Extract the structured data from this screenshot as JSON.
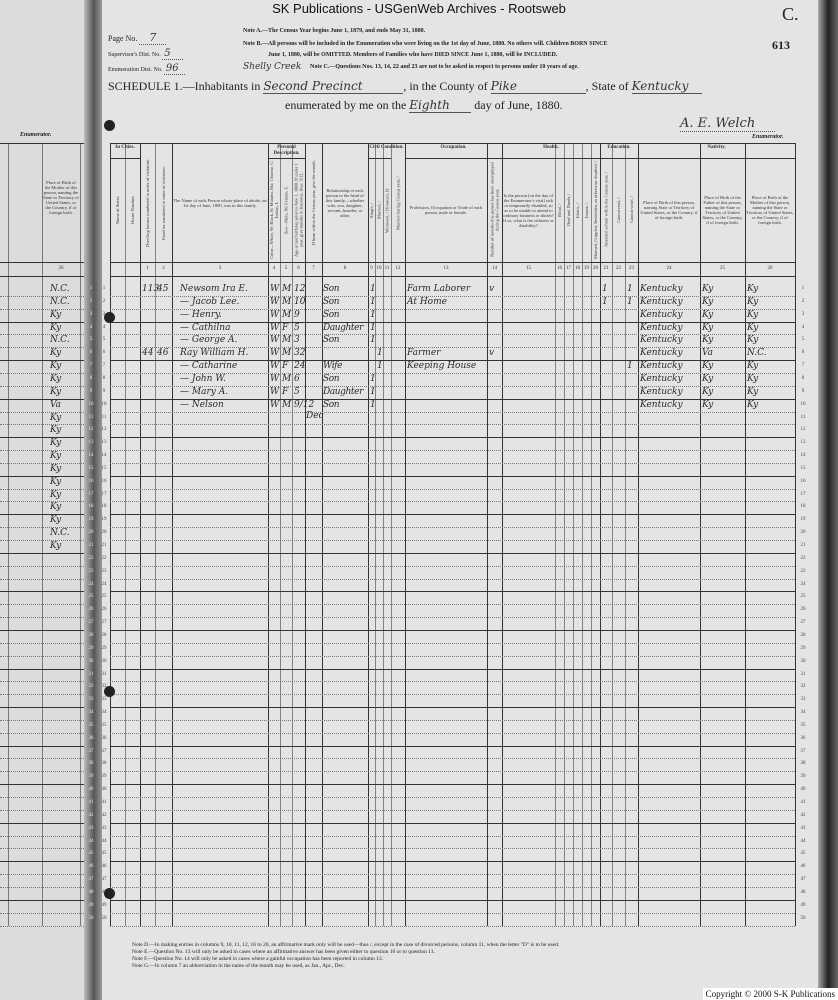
{
  "banner": "SK Publications - USGenWeb Archives - Rootsweb",
  "corner_letter": "C.",
  "stamp_number": "613",
  "header": {
    "page_label": "Page No.",
    "page_value": "7",
    "supervisor_label": "Supervisor's Dist. No.",
    "supervisor_value": "5",
    "enumeration_label": "Enumeration Dist. No.",
    "enumeration_value": "96",
    "note_a": "Note A.—The Census Year begins June 1, 1879, and ends May 31, 1880.",
    "note_b1": "Note B.—All persons will be included in the Enumeration who were living on the 1st day of June, 1880. No others will. Children BORN SINCE",
    "note_b2": "June 1, 1880, will be OMITTED. Members of Families who have DIED SINCE June 1, 1880, will be INCLUDED.",
    "note_c": "Note C.—Questions Nos. 13, 14, 22 and 23 are not to be asked in respect to persons under 10 years of age.",
    "schedule_label": "SCHEDULE 1.—Inhabitants in",
    "place_above": "Shelly Creek",
    "place_value": "Second Precinct",
    "county_label": ", in the County of",
    "county_value": "Pike",
    "state_label": ", State of",
    "state_value": "Kentucky",
    "enumerated_label": "enumerated by me on the",
    "day_value": "Eighth",
    "date_suffix": "day of June, 1880.",
    "signature": "A. E. Welch",
    "enumerator_label": "Enumerator."
  },
  "groups": {
    "in_cities": "In Cities.",
    "personal": "Personal Description.",
    "civil": "Civil Condition.",
    "occupation": "Occupation.",
    "health": "Health.",
    "education": "Education.",
    "nativity": "Nativity."
  },
  "columns": [
    {
      "num": "",
      "text": "Name of Street."
    },
    {
      "num": "",
      "text": "House Number."
    },
    {
      "num": "1",
      "text": "Dwelling houses numbered in order of visitation."
    },
    {
      "num": "2",
      "text": "Families numbered in order of visitation."
    },
    {
      "num": "3",
      "text": "The Name of each Person whose place of abode, on 1st day of June, 1880, was in this family."
    },
    {
      "num": "4",
      "text": "Color—White, W; Black, B; Mulatto, Mu; Chinese, C; Indian, I."
    },
    {
      "num": "5",
      "text": "Sex—Male, M; Female, F."
    },
    {
      "num": "6",
      "text": "Age at last birthday prior to June 1, 1880. If under 1 year, give months in fractions, thus: 3/12."
    },
    {
      "num": "7",
      "text": "If born within the Census year, give the month."
    },
    {
      "num": "8",
      "text": "Relationship of each person to the head of this family—whether wife, son, daughter, servant, boarder, or other."
    },
    {
      "num": "9",
      "text": "Single, /"
    },
    {
      "num": "10",
      "text": "Married, /"
    },
    {
      "num": "11",
      "text": "Widowed, / Divorced, D."
    },
    {
      "num": "12",
      "text": "Married during Census year, /"
    },
    {
      "num": "13",
      "text": "Profession, Occupation or Trade of each person, male or female."
    },
    {
      "num": "14",
      "text": "Number of months this person has been unemployed during the Census year."
    },
    {
      "num": "15",
      "text": "Is the person [on the day of the Enumerator's visit] sick or temporarily disabled, so as to be unable to attend to ordinary business or duties? If so, what is the sickness or disability?"
    },
    {
      "num": "16",
      "text": "Blind, /"
    },
    {
      "num": "17",
      "text": "Deaf and Dumb, /"
    },
    {
      "num": "18",
      "text": "Idiotic, /"
    },
    {
      "num": "19",
      "text": "Insane, /"
    },
    {
      "num": "20",
      "text": "Maimed, Crippled, Bedridden, or otherwise disabled, /"
    },
    {
      "num": "21",
      "text": "Attended school within the Census year, /"
    },
    {
      "num": "22",
      "text": "Cannot read, /"
    },
    {
      "num": "23",
      "text": "Cannot write, /"
    },
    {
      "num": "24",
      "text": "Place of Birth of this person, naming State or Territory of United States, or the Country, if of foreign birth."
    },
    {
      "num": "25",
      "text": "Place of Birth of the Father of this person, naming the State or Territory of United States, or the Country, if of foreign birth."
    },
    {
      "num": "26",
      "text": "Place of Birth of the Mother of this person, naming the State or Territory of United States, or the Country, if of foreign birth."
    }
  ],
  "rows": [
    {
      "dwelling": "113",
      "family": "45",
      "name": "Newsom Ira E.",
      "color": "W",
      "sex": "M",
      "age": "12",
      "relationship": "Son",
      "single": "1",
      "occupation": "Farm Laborer",
      "unemployed": "v",
      "school": "1",
      "cannot_write": "1",
      "birth": "Kentucky",
      "father": "Ky",
      "mother": "Ky"
    },
    {
      "name": "— Jacob Lee.",
      "color": "W",
      "sex": "M",
      "age": "10",
      "relationship": "Son",
      "single": "1",
      "occupation": "At Home",
      "school": "1",
      "cannot_write": "1",
      "birth": "Kentucky",
      "father": "Ky",
      "mother": "Ky"
    },
    {
      "name": "— Henry.",
      "color": "W",
      "sex": "M",
      "age": "9",
      "relationship": "Son",
      "single": "1",
      "birth": "Kentucky",
      "father": "Ky",
      "mother": "Ky"
    },
    {
      "name": "— Cathilna",
      "color": "W",
      "sex": "F",
      "age": "5",
      "relationship": "Daughter",
      "single": "1",
      "birth": "Kentucky",
      "father": "Ky",
      "mother": "Ky"
    },
    {
      "name": "— George A.",
      "color": "W",
      "sex": "M",
      "age": "3",
      "relationship": "Son",
      "single": "1",
      "birth": "Kentucky",
      "father": "Ky",
      "mother": "Ky"
    },
    {
      "dwelling": "44",
      "family": "46",
      "name": "Ray William H.",
      "color": "W",
      "sex": "M",
      "age": "32",
      "married": "1",
      "occupation": "Farmer",
      "unemployed": "v",
      "birth": "Kentucky",
      "father": "Va",
      "mother": "N.C."
    },
    {
      "name": "— Catharine",
      "color": "W",
      "sex": "F",
      "age": "24",
      "relationship": "Wife",
      "married": "1",
      "occupation": "Keeping House",
      "cannot_write": "1",
      "birth": "Kentucky",
      "father": "Ky",
      "mother": "Ky"
    },
    {
      "name": "— John W.",
      "color": "W",
      "sex": "M",
      "age": "6",
      "relationship": "Son",
      "single": "1",
      "birth": "Kentucky",
      "father": "Ky",
      "mother": "Ky"
    },
    {
      "name": "— Mary A.",
      "color": "W",
      "sex": "F",
      "age": "5",
      "relationship": "Daughter",
      "single": "1",
      "birth": "Kentucky",
      "father": "Ky",
      "mother": "Ky"
    },
    {
      "name": "— Nelson",
      "color": "W",
      "sex": "M",
      "age": "9/12",
      "month": "Dec",
      "relationship": "Son",
      "single": "1",
      "birth": "Kentucky",
      "father": "Ky",
      "mother": "Ky"
    }
  ],
  "left_page": {
    "enumerator_label": "Enumerator.",
    "column_text": "Place of Birth of the Mother of this person, naming the State or Territory of United States, or the Country, if of foreign birth.",
    "column_num": "26",
    "mother_birthplaces": [
      "N.C.",
      "N.C.",
      "Ky",
      "Ky",
      "N.C.",
      "Ky",
      "Ky",
      "Ky",
      "Ky",
      "Va",
      "Ky",
      "Ky",
      "Ky",
      "Ky",
      "Ky",
      "Ky",
      "Ky",
      "Ky",
      "Ky",
      "N.C.",
      "Ky"
    ]
  },
  "footer_notes": [
    "Note D.—In making entries in columns 9, 10, 11, 12, 16 to 20, an affirmative mark only will be used—thus /, except in the case of divorced persons, column 11, when the letter \"D\" is to be used.",
    "Note E.—Question No. 13 will only be asked in cases where an affirmative answer has been given either to question 10 or to question 11.",
    "Note F.—Question No. 14 will only be asked in cases where a gainful occupation has been reported in column 13.",
    "Note G.—In column 7 an abbreviation in the name of the month may be used, as Jan., Apr., Dec."
  ],
  "copyright": "Copyright © 2000 S-K Publications"
}
